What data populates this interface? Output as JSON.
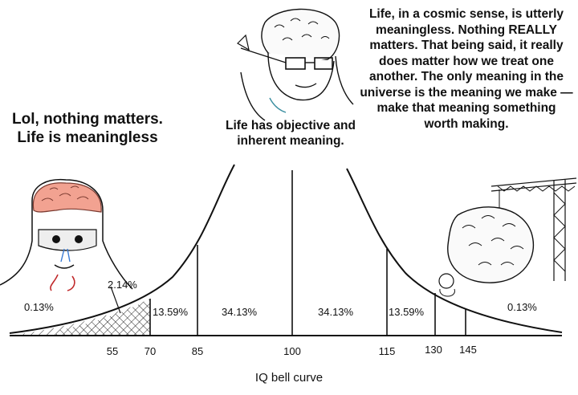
{
  "captions": {
    "left": "Lol, nothing matters.  Life is meaningless",
    "middle": "Life has objective and inherent meaning.",
    "right": "Life, in a cosmic sense, is utterly meaningless. Nothing REALLY matters. That being said, it really does matter how we treat one another. The only meaning in the universe is the meaning we make — make that meaning something worth making."
  },
  "curve": {
    "percentages": {
      "far_left": "0.13%",
      "left_outer": "2.14%",
      "left_mid": "13.59%",
      "left_inner": "34.13%",
      "right_inner": "34.13%",
      "right_mid": "13.59%",
      "far_right": "0.13%"
    },
    "ticks": [
      "55",
      "70",
      "85",
      "100",
      "115",
      "130",
      "145"
    ],
    "axis_title": "IQ bell curve"
  }
}
